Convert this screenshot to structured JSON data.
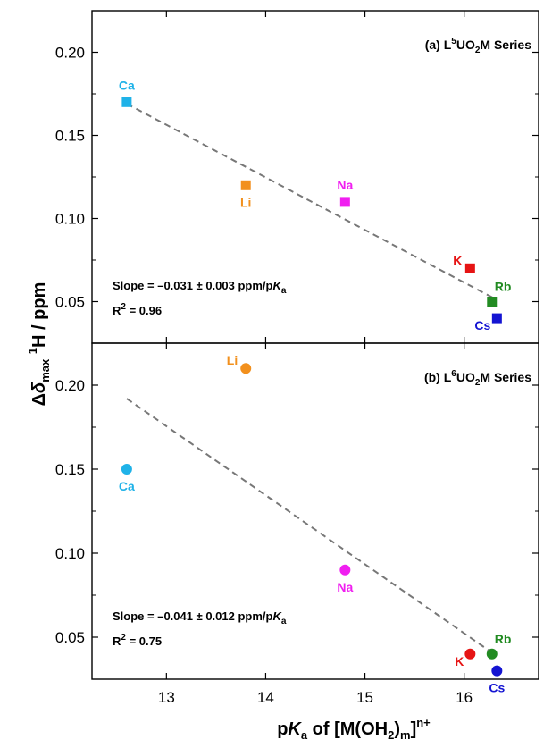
{
  "chart_data": {
    "type": "scatter",
    "x_axis": {
      "label": "pKa of [M(OH2)m]n+",
      "range": [
        12.25,
        16.75
      ],
      "ticks": [
        13,
        14,
        15,
        16
      ]
    },
    "y_axis": {
      "label": "Δδmax 1H / ppm",
      "ticks": [
        0.05,
        0.1,
        0.15,
        0.2
      ],
      "tick_labels": [
        "0.05",
        "0.10",
        "0.15",
        "0.20"
      ]
    },
    "grid": false,
    "panels": [
      {
        "id": "a",
        "title": {
          "prefix": "(a) L",
          "sup": "5",
          "mid": "UO",
          "sub": "2",
          "suffix": "M Series"
        },
        "marker": "square",
        "ylim": [
          0.025,
          0.225
        ],
        "slope_text": {
          "main": "Slope = –0.031 ± 0.003 ppm/p",
          "italic": "K",
          "sub": "a"
        },
        "r2_text": {
          "pre": "R",
          "sup": "2",
          "post": " = 0.96"
        },
        "fit": {
          "x": [
            12.6,
            16.3
          ],
          "y": [
            0.169,
            0.052
          ]
        },
        "points": [
          {
            "label": "Ca",
            "x": 12.6,
            "y": 0.17,
            "color": "#1fb2e8",
            "label_pos": "above"
          },
          {
            "label": "Li",
            "x": 13.8,
            "y": 0.12,
            "color": "#f2901d",
            "label_pos": "below"
          },
          {
            "label": "Na",
            "x": 14.8,
            "y": 0.11,
            "color": "#f01ef0",
            "label_pos": "above"
          },
          {
            "label": "K",
            "x": 16.06,
            "y": 0.07,
            "color": "#e61414",
            "label_pos": "left"
          },
          {
            "label": "Rb",
            "x": 16.28,
            "y": 0.05,
            "color": "#228b22",
            "label_pos": "above-right"
          },
          {
            "label": "Cs",
            "x": 16.33,
            "y": 0.04,
            "color": "#1414d2",
            "label_pos": "below-left"
          }
        ]
      },
      {
        "id": "b",
        "title": {
          "prefix": "(b) L",
          "sup": "6",
          "mid": "UO",
          "sub": "2",
          "suffix": "M Series"
        },
        "marker": "circle",
        "ylim": [
          0.025,
          0.225
        ],
        "slope_text": {
          "main": "Slope = –0.041 ± 0.012 ppm/p",
          "italic": "K",
          "sub": "a"
        },
        "r2_text": {
          "pre": "R",
          "sup": "2",
          "post": " = 0.75"
        },
        "fit": {
          "x": [
            12.6,
            16.3
          ],
          "y": [
            0.192,
            0.04
          ]
        },
        "points": [
          {
            "label": "Ca",
            "x": 12.6,
            "y": 0.15,
            "color": "#1fb2e8",
            "label_pos": "below"
          },
          {
            "label": "Li",
            "x": 13.8,
            "y": 0.21,
            "color": "#f2901d",
            "label_pos": "left"
          },
          {
            "label": "Na",
            "x": 14.8,
            "y": 0.09,
            "color": "#f01ef0",
            "label_pos": "below"
          },
          {
            "label": "K",
            "x": 16.06,
            "y": 0.04,
            "color": "#e61414",
            "label_pos": "below-left"
          },
          {
            "label": "Rb",
            "x": 16.28,
            "y": 0.04,
            "color": "#228b22",
            "label_pos": "above-right"
          },
          {
            "label": "Cs",
            "x": 16.33,
            "y": 0.03,
            "color": "#1414d2",
            "label_pos": "below"
          }
        ]
      }
    ]
  }
}
